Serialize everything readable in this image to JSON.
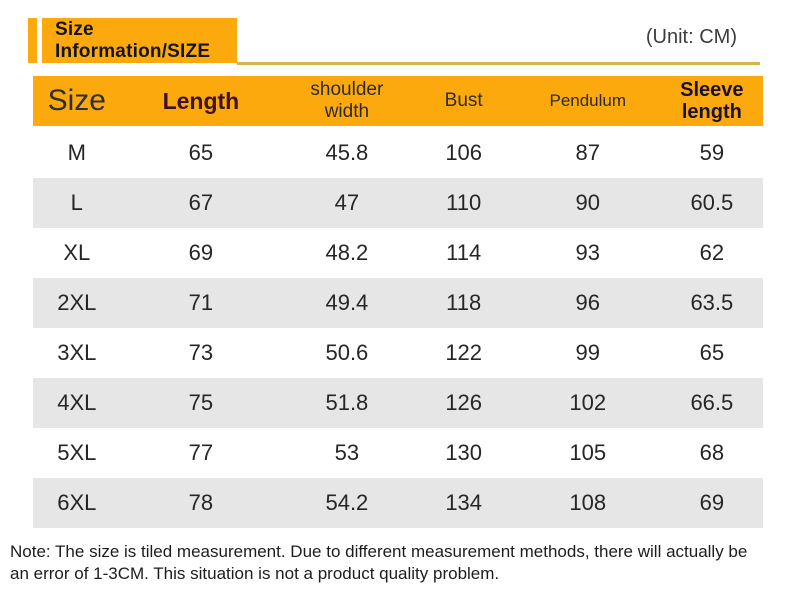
{
  "banner": {
    "title": "Size Information/SIZE",
    "unit": "(Unit: CM)"
  },
  "colors": {
    "accent_orange": "#FCA90E",
    "underline_gold": "#D8B54C",
    "row_alt_gray": "#E6E6E6"
  },
  "table": {
    "columns": [
      "Size",
      "Length",
      "shoulder width",
      "Bust",
      "Pendulum",
      "Sleeve length"
    ],
    "rows": [
      [
        "M",
        "65",
        "45.8",
        "106",
        "87",
        "59"
      ],
      [
        "L",
        "67",
        "47",
        "110",
        "90",
        "60.5"
      ],
      [
        "XL",
        "69",
        "48.2",
        "114",
        "93",
        "62"
      ],
      [
        "2XL",
        "71",
        "49.4",
        "118",
        "96",
        "63.5"
      ],
      [
        "3XL",
        "73",
        "50.6",
        "122",
        "99",
        "65"
      ],
      [
        "4XL",
        "75",
        "51.8",
        "126",
        "102",
        "66.5"
      ],
      [
        "5XL",
        "77",
        "53",
        "130",
        "105",
        "68"
      ],
      [
        "6XL",
        "78",
        "54.2",
        "134",
        "108",
        "69"
      ]
    ]
  },
  "note": "Note: The size is tiled measurement. Due to different measurement methods, there will actually be an error of 1-3CM. This situation is not a product quality problem."
}
